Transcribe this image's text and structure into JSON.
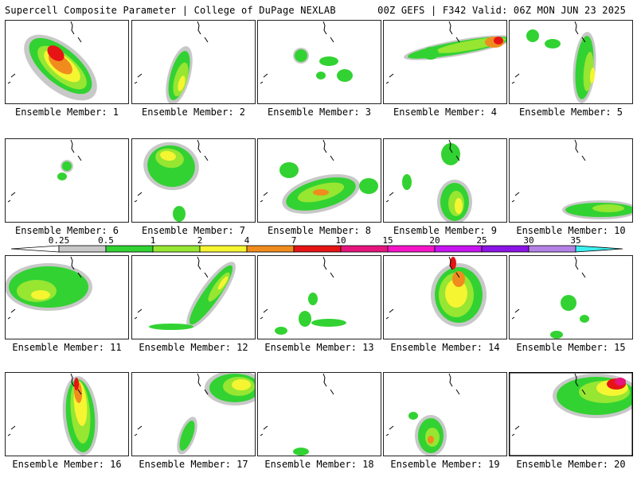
{
  "header": {
    "title": "Supercell Composite Parameter | College of DuPage NEXLAB",
    "run_info": "00Z GEFS | F342 Valid: 06Z MON JUN 23 2025"
  },
  "colorbar": {
    "levels": [
      "0.25",
      "0.5",
      "1",
      "2",
      "4",
      "7",
      "10",
      "15",
      "20",
      "25",
      "30",
      "35"
    ],
    "colors": [
      "#c8c8c8",
      "#32d232",
      "#96e632",
      "#f5f532",
      "#f08c1e",
      "#e61414",
      "#e6147d",
      "#f514c8",
      "#c814f0",
      "#8c14e6",
      "#b482e6",
      "#3cf0f0"
    ]
  },
  "panels": [
    {
      "label": "Ensemble Member: 1"
    },
    {
      "label": "Ensemble Member: 2"
    },
    {
      "label": "Ensemble Member: 3"
    },
    {
      "label": "Ensemble Member: 4"
    },
    {
      "label": "Ensemble Member: 5"
    },
    {
      "label": "Ensemble Member: 6"
    },
    {
      "label": "Ensemble Member: 7"
    },
    {
      "label": "Ensemble Member: 8"
    },
    {
      "label": "Ensemble Member: 9"
    },
    {
      "label": "Ensemble Member: 10"
    },
    {
      "label": "Ensemble Member: 11"
    },
    {
      "label": "Ensemble Member: 12"
    },
    {
      "label": "Ensemble Member: 13"
    },
    {
      "label": "Ensemble Member: 14"
    },
    {
      "label": "Ensemble Member: 15"
    },
    {
      "label": "Ensemble Member: 16"
    },
    {
      "label": "Ensemble Member: 17"
    },
    {
      "label": "Ensemble Member: 18"
    },
    {
      "label": "Ensemble Member: 19"
    },
    {
      "label": "Ensemble Member: 20"
    }
  ]
}
